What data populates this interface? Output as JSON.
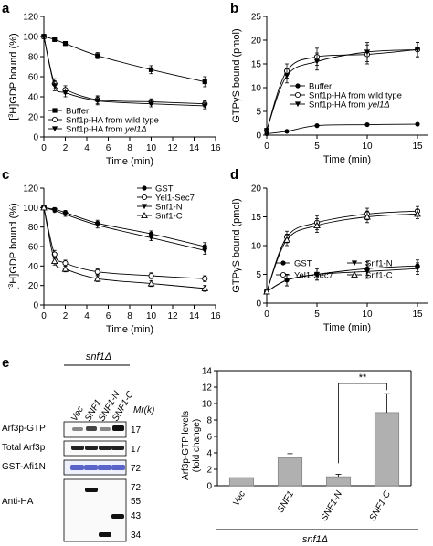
{
  "panels": {
    "a": {
      "letter": "a",
      "ylabel": "[3H]GDP bound (%)",
      "xlabel": "Time (min)",
      "ylim": [
        0,
        120
      ],
      "yticks": [
        0,
        20,
        40,
        60,
        80,
        100,
        120
      ],
      "xlim": [
        0,
        16
      ],
      "xticks": [
        0,
        2,
        4,
        6,
        8,
        10,
        12,
        14,
        16
      ],
      "legend": [
        {
          "label": "Buffer",
          "marker": "filled-square"
        },
        {
          "label": "Snf1p-HA from wild type",
          "marker": "open-circle"
        },
        {
          "label": "Snf1p-HA from yel1Δ",
          "marker": "filled-triangle-down"
        }
      ]
    },
    "b": {
      "letter": "b",
      "ylabel": "GTPγS bound (pmol)",
      "xlabel": "Time (min)",
      "ylim": [
        0,
        25
      ],
      "yticks": [
        0,
        5,
        10,
        15,
        20,
        25
      ],
      "xlim": [
        0,
        16
      ],
      "xticks": [
        0,
        5,
        10,
        15
      ],
      "legend": [
        {
          "label": "Buffer",
          "marker": "filled-circle"
        },
        {
          "label": "Snf1p-HA from wild type",
          "marker": "open-circle"
        },
        {
          "label": "Snf1p-HA from yel1Δ",
          "marker": "filled-triangle-down"
        }
      ]
    },
    "c": {
      "letter": "c",
      "ylabel": "[3H]GDP bound (%)",
      "xlabel": "Time (min)",
      "ylim": [
        0,
        120
      ],
      "yticks": [
        0,
        20,
        40,
        60,
        80,
        100,
        120
      ],
      "xlim": [
        0,
        16
      ],
      "xticks": [
        0,
        2,
        4,
        6,
        8,
        10,
        12,
        14,
        16
      ],
      "legend": [
        {
          "label": "GST",
          "marker": "filled-circle"
        },
        {
          "label": "Yel1-Sec7",
          "marker": "open-circle"
        },
        {
          "label": "Snf1-N",
          "marker": "filled-triangle-down"
        },
        {
          "label": "Snf1-C",
          "marker": "open-triangle-up"
        }
      ]
    },
    "d": {
      "letter": "d",
      "ylabel": "GTPγS bound (pmol)",
      "xlabel": "Time (min)",
      "ylim": [
        0,
        20
      ],
      "yticks": [
        0,
        5,
        10,
        15,
        20
      ],
      "xlim": [
        0,
        16
      ],
      "xticks": [
        0,
        5,
        10,
        15
      ],
      "legend": [
        {
          "label": "GST",
          "marker": "filled-circle"
        },
        {
          "label": "Snf1-N",
          "marker": "filled-triangle-down"
        },
        {
          "label": "Yel1-Sec7",
          "marker": "open-circle"
        },
        {
          "label": "Snf1-C",
          "marker": "open-triangle-up"
        }
      ]
    },
    "e": {
      "letter": "e",
      "blot": {
        "genotype": "snf1Δ",
        "lanes": [
          "Vec",
          "SNF1",
          "SNF1-N",
          "SNF1-C"
        ],
        "mr_label": "Mr(k)",
        "rows": [
          {
            "label": "Arf3p-GTP",
            "mw": "17"
          },
          {
            "label": "Total Arf3p",
            "mw": "17"
          },
          {
            "label": "GST-Afi1N",
            "mw": "72"
          },
          {
            "label": "Anti-HA",
            "mw_ladder": [
              "72",
              "55",
              "43",
              "34"
            ]
          }
        ]
      },
      "bar": {
        "ylabel_line1": "Arf3p-GTP levels",
        "ylabel_line2": "(fold change)",
        "genotype": "snf1Δ",
        "significance": "**"
      }
    }
  },
  "chart_data": [
    {
      "panel": "a",
      "type": "line",
      "title": "",
      "xlabel": "Time (min)",
      "ylabel": "[3H]GDP bound (%)",
      "xlim": [
        0,
        16
      ],
      "ylim": [
        0,
        120
      ],
      "grid": false,
      "legend_position": "bottom-left",
      "x": [
        0,
        1,
        2,
        5,
        10,
        15
      ],
      "series": [
        {
          "name": "Buffer",
          "values": [
            100,
            97,
            93,
            81,
            67,
            55
          ],
          "err": [
            2,
            2,
            2,
            3,
            4,
            5
          ]
        },
        {
          "name": "Snf1p-HA from wild type",
          "values": [
            100,
            53,
            47,
            37,
            35,
            33
          ],
          "err": [
            2,
            5,
            4,
            4,
            3,
            3
          ]
        },
        {
          "name": "Snf1p-HA from yel1Δ",
          "values": [
            100,
            51,
            44,
            36,
            33,
            31
          ],
          "err": [
            2,
            5,
            4,
            4,
            3,
            3
          ]
        }
      ]
    },
    {
      "panel": "b",
      "type": "line",
      "title": "",
      "xlabel": "Time (min)",
      "ylabel": "GTPγS bound (pmol)",
      "xlim": [
        0,
        16
      ],
      "ylim": [
        0,
        25
      ],
      "grid": false,
      "legend_position": "bottom-right",
      "x": [
        0,
        2,
        5,
        10,
        15
      ],
      "series": [
        {
          "name": "Buffer",
          "values": [
            0.3,
            0.8,
            2.0,
            2.2,
            2.3
          ],
          "err": [
            0.1,
            0.2,
            0.2,
            0.2,
            0.2
          ]
        },
        {
          "name": "Snf1p-HA from wild type",
          "values": [
            1.0,
            13.5,
            16.5,
            17.0,
            18.0
          ],
          "err": [
            0.3,
            1.5,
            1.8,
            2.0,
            1.5
          ]
        },
        {
          "name": "Snf1p-HA from yel1Δ",
          "values": [
            1.0,
            12.5,
            15.5,
            17.5,
            18.0
          ],
          "err": [
            0.3,
            1.5,
            1.8,
            2.0,
            1.5
          ]
        }
      ]
    },
    {
      "panel": "c",
      "type": "line",
      "title": "",
      "xlabel": "Time (min)",
      "ylabel": "[3H]GDP bound (%)",
      "xlim": [
        0,
        16
      ],
      "ylim": [
        0,
        120
      ],
      "grid": false,
      "legend_position": "top-right",
      "x": [
        0,
        1,
        2,
        5,
        10,
        15
      ],
      "series": [
        {
          "name": "GST",
          "values": [
            100,
            98,
            95,
            84,
            73,
            60
          ],
          "err": [
            2,
            2,
            2,
            3,
            3,
            4
          ]
        },
        {
          "name": "Yel1-Sec7",
          "values": [
            100,
            52,
            43,
            34,
            30,
            27
          ],
          "err": [
            2,
            4,
            3,
            3,
            3,
            3
          ]
        },
        {
          "name": "Snf1-N",
          "values": [
            100,
            97,
            93,
            82,
            69,
            56
          ],
          "err": [
            2,
            2,
            2,
            3,
            3,
            4
          ]
        },
        {
          "name": "Snf1-C",
          "values": [
            100,
            45,
            37,
            27,
            22,
            17
          ],
          "err": [
            2,
            4,
            3,
            3,
            3,
            3
          ]
        }
      ]
    },
    {
      "panel": "d",
      "type": "line",
      "title": "",
      "xlabel": "Time (min)",
      "ylabel": "GTPγS bound (pmol)",
      "xlim": [
        0,
        16
      ],
      "ylim": [
        0,
        20
      ],
      "grid": false,
      "legend_position": "bottom-right",
      "x": [
        0,
        2,
        5,
        10,
        15
      ],
      "series": [
        {
          "name": "GST",
          "values": [
            2.0,
            4.0,
            5.0,
            6.0,
            6.5
          ],
          "err": [
            0.3,
            1.0,
            1.0,
            1.2,
            1.0
          ]
        },
        {
          "name": "Snf1-N",
          "values": [
            2.0,
            4.0,
            5.0,
            5.5,
            6.0
          ],
          "err": [
            0.3,
            1.0,
            1.0,
            1.2,
            1.0
          ]
        },
        {
          "name": "Yel1-Sec7",
          "values": [
            2.0,
            11.5,
            14.0,
            15.5,
            16.0
          ],
          "err": [
            0.3,
            1.0,
            1.2,
            1.0,
            0.8
          ]
        },
        {
          "name": "Snf1-C",
          "values": [
            2.0,
            11.0,
            13.5,
            15.0,
            15.5
          ],
          "err": [
            0.3,
            1.0,
            1.2,
            1.0,
            0.8
          ]
        }
      ]
    },
    {
      "panel": "e",
      "type": "bar",
      "title": "",
      "xlabel": "",
      "ylabel": "Arf3p-GTP levels (fold change)",
      "ylim": [
        0,
        14
      ],
      "yticks": [
        0,
        2,
        4,
        6,
        8,
        10,
        12,
        14
      ],
      "grid": false,
      "categories": [
        "Vec",
        "SNF1",
        "SNF1-N",
        "SNF1-C"
      ],
      "values": [
        1.0,
        3.4,
        1.1,
        8.9
      ],
      "err": [
        0.0,
        0.5,
        0.3,
        2.3
      ],
      "color": "#b0b0b0"
    }
  ]
}
